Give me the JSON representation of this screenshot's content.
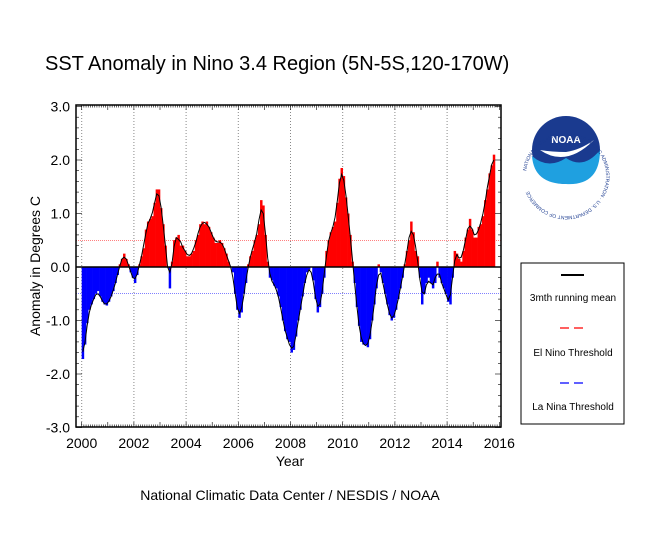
{
  "chart_data": {
    "type": "bar",
    "title": "SST Anomaly in Nino 3.4 Region (5N-5S,120-170W)",
    "xlabel": "Year",
    "ylabel": "Anomaly in Degrees C",
    "footer": "National Climatic Data Center / NESDIS / NOAA",
    "xlim": [
      2000,
      2016
    ],
    "ylim": [
      -3.0,
      3.0
    ],
    "x_ticks": [
      "2000",
      "2002",
      "2004",
      "2006",
      "2008",
      "2010",
      "2012",
      "2014",
      "2016"
    ],
    "y_ticks": [
      "3.0",
      "2.0",
      "1.0",
      "0.0",
      "-1.0",
      "-2.0",
      "-3.0"
    ],
    "start": "2000-01",
    "frequency": "monthly",
    "monthly_anomaly": {
      "2000": [
        -1.72,
        -1.45,
        -1.05,
        -0.8,
        -0.7,
        -0.6,
        -0.5,
        -0.45,
        -0.55,
        -0.65,
        -0.7,
        -0.72
      ],
      "2001": [
        -0.65,
        -0.55,
        -0.45,
        -0.3,
        -0.15,
        0.05,
        0.15,
        0.25,
        0.15,
        0.05,
        -0.1,
        -0.2
      ],
      "2002": [
        -0.3,
        -0.15,
        0.05,
        0.2,
        0.35,
        0.7,
        0.85,
        0.9,
        0.95,
        1.2,
        1.45,
        1.45
      ],
      "2003": [
        1.1,
        0.8,
        0.4,
        0.0,
        -0.4,
        0.1,
        0.5,
        0.55,
        0.6,
        0.4,
        0.4,
        0.3
      ],
      "2004": [
        0.2,
        0.2,
        0.25,
        0.3,
        0.5,
        0.6,
        0.8,
        0.85,
        0.8,
        0.85,
        0.75,
        0.65
      ],
      "2005": [
        0.55,
        0.45,
        0.45,
        0.5,
        0.45,
        0.35,
        0.25,
        0.1,
        0.0,
        -0.1,
        -0.5,
        -0.8
      ],
      "2006": [
        -0.95,
        -0.85,
        -0.5,
        -0.3,
        0.05,
        0.2,
        0.3,
        0.5,
        0.6,
        0.8,
        1.25,
        1.15
      ],
      "2007": [
        0.6,
        0.1,
        -0.2,
        -0.25,
        -0.35,
        -0.4,
        -0.55,
        -0.75,
        -1.0,
        -1.2,
        -1.35,
        -1.4
      ],
      "2008": [
        -1.6,
        -1.55,
        -1.3,
        -1.0,
        -0.8,
        -0.55,
        -0.3,
        -0.1,
        -0.05,
        0.0,
        -0.25,
        -0.6
      ],
      "2009": [
        -0.85,
        -0.75,
        -0.5,
        -0.2,
        0.3,
        0.5,
        0.65,
        0.75,
        0.85,
        1.2,
        1.65,
        1.85
      ],
      "2010": [
        1.7,
        1.3,
        1.0,
        0.6,
        0.1,
        -0.3,
        -0.75,
        -1.1,
        -1.4,
        -1.45,
        -1.45,
        -1.5
      ],
      "2011": [
        -1.35,
        -1.0,
        -0.7,
        -0.4,
        0.05,
        -0.1,
        -0.3,
        -0.5,
        -0.7,
        -0.9,
        -1.0,
        -0.95
      ],
      "2012": [
        -0.8,
        -0.6,
        -0.4,
        -0.2,
        0.05,
        0.3,
        0.5,
        0.85,
        0.65,
        0.3,
        0.2,
        -0.2
      ],
      "2013": [
        -0.7,
        -0.5,
        -0.3,
        -0.2,
        -0.3,
        -0.4,
        -0.3,
        0.1,
        -0.2,
        -0.3,
        -0.4,
        -0.5
      ],
      "2014": [
        -0.65,
        -0.7,
        -0.2,
        0.3,
        0.25,
        0.15,
        0.1,
        0.3,
        0.55,
        0.7,
        0.9,
        0.7
      ],
      "2015": [
        0.55,
        0.55,
        0.75,
        0.8,
        0.95,
        1.25,
        1.45,
        1.75,
        1.9,
        2.1
      ]
    },
    "thresholds": {
      "el_nino": 0.5,
      "la_nina": -0.5
    },
    "grid": "vertical dotted lines at even years",
    "colors": {
      "positive": "#ff0000",
      "negative": "#0000ff",
      "mean": "#000000",
      "el_nino": "#ff0000",
      "la_nina": "#0000ff"
    },
    "legend": {
      "placement": "right",
      "items": [
        {
          "label": "3mth running mean",
          "color": "#000000",
          "style": "solid"
        },
        {
          "label": "El Nino Threshold",
          "color": "#ff0000",
          "style": "dashed"
        },
        {
          "label": "La Nina Threshold",
          "color": "#0000ff",
          "style": "dashed"
        }
      ]
    }
  },
  "logo": {
    "text": "NOAA",
    "ring_text": "NATIONAL OCEANIC AND ATMOSPHERIC ADMINISTRATION · U.S. DEPARTMENT OF COMMERCE"
  }
}
